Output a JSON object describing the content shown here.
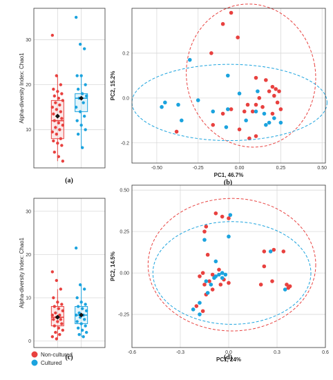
{
  "colors": {
    "non_cultured": "#e8413f",
    "cultured": "#1ba3de",
    "grid": "#d9d9d9",
    "frame": "#333333"
  },
  "legend": {
    "items": [
      {
        "label": "Non-cultured",
        "color": "#e8413f"
      },
      {
        "label": "Cultured",
        "color": "#1ba3de"
      }
    ]
  },
  "chart_data": [
    {
      "id": "a",
      "type": "boxplot",
      "panel_label": "(a)",
      "ylabel": "Alpha-diversity Index: Chao1",
      "ylim": [
        1.5,
        37
      ],
      "yticks": [
        10,
        20,
        30
      ],
      "grid": true,
      "groups": [
        {
          "name": "Non-cultured",
          "color": "#e8413f",
          "box": {
            "whisker_low": 3,
            "q1": 8,
            "median": 12,
            "q3": 16.5,
            "whisker_high": 22
          },
          "mean": 13,
          "points": [
            31,
            22,
            20,
            19,
            18.5,
            18,
            17.5,
            17,
            16.5,
            16,
            15.5,
            15,
            14.5,
            14,
            13.5,
            13,
            12.5,
            12,
            11.5,
            11,
            10.5,
            10,
            9.5,
            9,
            8,
            7.5,
            7,
            6.5,
            5,
            4,
            3
          ]
        },
        {
          "name": "Cultured",
          "color": "#1ba3de",
          "box": {
            "whisker_low": 6,
            "q1": 14,
            "median": 17,
            "q3": 18,
            "whisker_high": 22
          },
          "mean": 17,
          "points": [
            35,
            29,
            28,
            22,
            22,
            20,
            19,
            18,
            17.5,
            17,
            16,
            15,
            14,
            13,
            12,
            11,
            10,
            9,
            6
          ]
        }
      ]
    },
    {
      "id": "b",
      "type": "scatter",
      "panel_label": "(b)",
      "xlabel": "PC1, 46.7%",
      "ylabel": "PC2, 15.2%",
      "xlim": [
        -0.65,
        0.52
      ],
      "ylim": [
        -0.29,
        0.4
      ],
      "xticks": [
        -0.5,
        -0.25,
        0,
        0.25,
        0.5
      ],
      "xtick_labels": [
        "-0.50",
        "-0.25",
        "0.00",
        "0.25",
        "0.50"
      ],
      "yticks": [
        -0.2,
        0,
        0.2
      ],
      "ytick_labels": [
        "-0.2",
        "0.0",
        "0.2"
      ],
      "grid": true,
      "ellipses": [
        {
          "group": "Non-cultured",
          "center": [
            0.07,
            0.1
          ],
          "rx": 0.39,
          "ry": 0.32,
          "rotation_deg": -10
        },
        {
          "group": "Cultured",
          "center": [
            -0.06,
            -0.02
          ],
          "rx": 0.59,
          "ry": 0.17,
          "rotation_deg": 0
        }
      ],
      "series": [
        {
          "name": "Non-cultured",
          "points": [
            [
              -0.05,
              0.38
            ],
            [
              -0.1,
              0.33
            ],
            [
              -0.01,
              0.27
            ],
            [
              -0.17,
              0.2
            ],
            [
              0.1,
              0.09
            ],
            [
              0.16,
              0.08
            ],
            [
              0.2,
              0.05
            ],
            [
              0.22,
              0.04
            ],
            [
              0.24,
              0.03
            ],
            [
              0.18,
              0.03
            ],
            [
              0.21,
              0.01
            ],
            [
              0.12,
              0.0
            ],
            [
              0.05,
              -0.03
            ],
            [
              0.1,
              -0.03
            ],
            [
              0.14,
              -0.04
            ],
            [
              0.25,
              -0.05
            ],
            [
              -0.05,
              -0.05
            ],
            [
              0.03,
              -0.06
            ],
            [
              0.08,
              -0.06
            ],
            [
              -0.1,
              -0.07
            ],
            [
              0.2,
              -0.07
            ],
            [
              -0.16,
              -0.12
            ],
            [
              0.0,
              -0.14
            ],
            [
              -0.38,
              -0.15
            ],
            [
              0.1,
              -0.17
            ],
            [
              0.06,
              -0.18
            ],
            [
              0.23,
              -0.02
            ]
          ]
        },
        {
          "name": "Cultured",
          "points": [
            [
              -0.3,
              0.17
            ],
            [
              -0.07,
              0.1
            ],
            [
              0.11,
              0.03
            ],
            [
              0.0,
              0.02
            ],
            [
              -0.25,
              -0.01
            ],
            [
              -0.45,
              -0.02
            ],
            [
              -0.37,
              -0.03
            ],
            [
              -0.07,
              -0.05
            ],
            [
              -0.16,
              -0.06
            ],
            [
              -0.47,
              -0.04
            ],
            [
              0.1,
              -0.06
            ],
            [
              0.15,
              -0.07
            ],
            [
              0.21,
              -0.09
            ],
            [
              0.18,
              -0.11
            ],
            [
              0.16,
              -0.12
            ],
            [
              0.25,
              -0.11
            ],
            [
              -0.08,
              -0.13
            ],
            [
              -0.35,
              -0.1
            ],
            [
              0.04,
              -0.1
            ]
          ]
        }
      ]
    },
    {
      "id": "c",
      "type": "boxplot",
      "panel_label": "(c)",
      "ylabel": "Alpha-diversity Index: Chao1",
      "ylim": [
        -1.5,
        33
      ],
      "yticks": [
        0,
        10,
        20,
        30
      ],
      "grid": true,
      "groups": [
        {
          "name": "Non-cultured",
          "color": "#e8413f",
          "box": {
            "whisker_low": 0.5,
            "q1": 3.5,
            "median": 5.5,
            "q3": 8,
            "whisker_high": 12
          },
          "mean": 5.5,
          "points": [
            16,
            14,
            12,
            10,
            9,
            8.5,
            8,
            7.5,
            7,
            6.5,
            6,
            6,
            5.5,
            5,
            5,
            4.5,
            4,
            3.5,
            3,
            2.5,
            2,
            1.5,
            1,
            0.5
          ]
        },
        {
          "name": "Cultured",
          "color": "#1ba3de",
          "box": {
            "whisker_low": 1,
            "q1": 4,
            "median": 6,
            "q3": 8,
            "whisker_high": 13
          },
          "mean": 6,
          "points": [
            21.5,
            13,
            12,
            10,
            9,
            8.5,
            8,
            7.5,
            7,
            6.5,
            6,
            6,
            5.5,
            5,
            4.5,
            4,
            3.5,
            3,
            2.5,
            2,
            1.5,
            1
          ]
        }
      ]
    },
    {
      "id": "d",
      "type": "scatter",
      "panel_label": "(d)",
      "xlabel": "PC1, 24%",
      "ylabel": "PC2, 14.5%",
      "xlim": [
        -0.6,
        0.6
      ],
      "ylim": [
        -0.45,
        0.53
      ],
      "xticks": [
        -0.6,
        -0.3,
        0,
        0.3,
        0.6
      ],
      "xtick_labels": [
        "-0.6",
        "-0.3",
        "0.0",
        "0.3",
        "0.6"
      ],
      "yticks": [
        -0.25,
        0,
        0.25,
        0.5
      ],
      "ytick_labels": [
        "-0.25",
        "0.00",
        "0.25",
        "0.50"
      ],
      "grid": true,
      "ellipses": [
        {
          "group": "Non-cultured",
          "center": [
            0.02,
            0.05
          ],
          "rx": 0.52,
          "ry": 0.4,
          "rotation_deg": 0
        },
        {
          "group": "Cultured",
          "center": [
            0.02,
            0.0
          ],
          "rx": 0.49,
          "ry": 0.31,
          "rotation_deg": 0
        }
      ],
      "series": [
        {
          "name": "Non-cultured",
          "points": [
            [
              -0.08,
              0.36
            ],
            [
              -0.04,
              0.34
            ],
            [
              0.0,
              0.33
            ],
            [
              -0.14,
              0.28
            ],
            [
              -0.15,
              0.25
            ],
            [
              0.22,
              0.13
            ],
            [
              0.28,
              0.14
            ],
            [
              0.34,
              0.13
            ],
            [
              -0.13,
              0.11
            ],
            [
              0.22,
              0.04
            ],
            [
              -0.06,
              0.02
            ],
            [
              -0.16,
              0.0
            ],
            [
              -0.1,
              -0.01
            ],
            [
              -0.18,
              -0.02
            ],
            [
              0.27,
              -0.05
            ],
            [
              0.36,
              -0.07
            ],
            [
              0.38,
              -0.08
            ],
            [
              0.37,
              -0.09
            ],
            [
              0.2,
              -0.07
            ],
            [
              -0.12,
              -0.05
            ],
            [
              -0.05,
              -0.07
            ],
            [
              -0.15,
              -0.07
            ],
            [
              -0.1,
              -0.1
            ],
            [
              -0.14,
              -0.13
            ],
            [
              -0.16,
              -0.23
            ],
            [
              -0.2,
              -0.2
            ],
            [
              0.0,
              -0.06
            ],
            [
              -0.03,
              -0.04
            ]
          ]
        },
        {
          "name": "Cultured",
          "points": [
            [
              -0.15,
              0.2
            ],
            [
              0.01,
              0.35
            ],
            [
              -0.08,
              0.07
            ],
            [
              0.26,
              0.13
            ],
            [
              -0.04,
              0.0
            ],
            [
              -0.02,
              -0.01
            ],
            [
              -0.06,
              -0.01
            ],
            [
              -0.08,
              -0.02
            ],
            [
              -0.04,
              -0.03
            ],
            [
              -0.14,
              -0.05
            ],
            [
              -0.09,
              -0.03
            ],
            [
              -0.11,
              -0.07
            ],
            [
              -0.13,
              -0.12
            ],
            [
              -0.18,
              -0.18
            ],
            [
              -0.22,
              -0.22
            ],
            [
              -0.18,
              -0.25
            ],
            [
              0.35,
              -0.1
            ],
            [
              0.0,
              0.22
            ]
          ]
        }
      ]
    }
  ]
}
